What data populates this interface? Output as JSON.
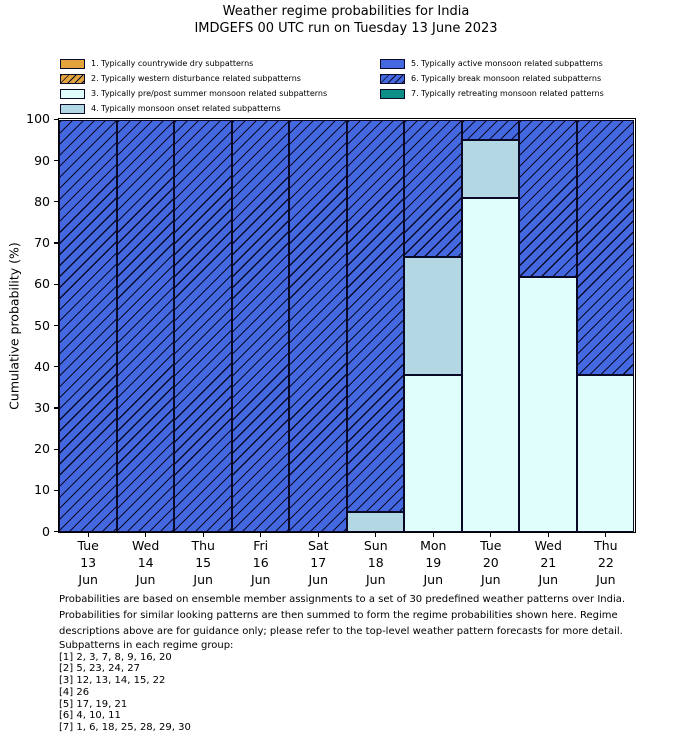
{
  "title": {
    "line1": "Weather regime probabilities for India",
    "line2": "IMDGEFS 00 UTC run on Tuesday 13 June 2023"
  },
  "ylabel": "Cumulative probability (%)",
  "colors": {
    "gold": "#E3A33C",
    "light_cyan": "#E0FEFB",
    "light_blue": "#B3D8E3",
    "royal_blue": "#4468E0",
    "teal": "#0D8F85",
    "edge": "#0a0a28"
  },
  "regimes": [
    {
      "id": 1,
      "label": "1. Typically countrywide dry subpatterns",
      "color": "#E3A33C",
      "hatch": false
    },
    {
      "id": 2,
      "label": "2. Typically western disturbance related subpatterns",
      "color": "#E3A33C",
      "hatch": true
    },
    {
      "id": 3,
      "label": "3. Typically pre/post summer monsoon related subpatterns",
      "color": "#E0FEFB",
      "hatch": false
    },
    {
      "id": 4,
      "label": "4. Typically monsoon onset related subpatterns",
      "color": "#B3D8E3",
      "hatch": false
    },
    {
      "id": 5,
      "label": "5. Typically active monsoon related subpatterns",
      "color": "#4468E0",
      "hatch": false
    },
    {
      "id": 6,
      "label": "6. Typically break monsoon related subpatterns",
      "color": "#4468E0",
      "hatch": true
    },
    {
      "id": 7,
      "label": "7. Typically retreating monsoon related patterns",
      "color": "#0D8F85",
      "hatch": false
    }
  ],
  "chart_data": {
    "type": "stacked_bar",
    "title": "Weather regime probabilities for India — IMDGEFS 00 UTC run on Tuesday 13 June 2023",
    "xlabel": "",
    "ylabel": "Cumulative probability (%)",
    "ylim": [
      0,
      100
    ],
    "yticks": [
      0,
      10,
      20,
      30,
      40,
      50,
      60,
      70,
      80,
      90,
      100
    ],
    "grid": false,
    "legend_position": "top",
    "categories": [
      {
        "dow": "Tue",
        "day": "13",
        "mon": "Jun"
      },
      {
        "dow": "Wed",
        "day": "14",
        "mon": "Jun"
      },
      {
        "dow": "Thu",
        "day": "15",
        "mon": "Jun"
      },
      {
        "dow": "Fri",
        "day": "16",
        "mon": "Jun"
      },
      {
        "dow": "Sat",
        "day": "17",
        "mon": "Jun"
      },
      {
        "dow": "Sun",
        "day": "18",
        "mon": "Jun"
      },
      {
        "dow": "Mon",
        "day": "19",
        "mon": "Jun"
      },
      {
        "dow": "Tue",
        "day": "20",
        "mon": "Jun"
      },
      {
        "dow": "Wed",
        "day": "21",
        "mon": "Jun"
      },
      {
        "dow": "Thu",
        "day": "22",
        "mon": "Jun"
      }
    ],
    "series": [
      {
        "regime": 1,
        "name": "1. Typically countrywide dry subpatterns",
        "values": [
          0,
          0,
          0,
          0,
          0,
          0,
          0,
          0,
          0,
          0
        ]
      },
      {
        "regime": 2,
        "name": "2. Typically western disturbance related subpatterns",
        "values": [
          0,
          0,
          0,
          0,
          0,
          0,
          0,
          0,
          0,
          0
        ]
      },
      {
        "regime": 3,
        "name": "3. Typically pre/post summer monsoon related subpatterns",
        "values": [
          0,
          0,
          0,
          0,
          0,
          0,
          38.1,
          81.0,
          61.9,
          38.1
        ]
      },
      {
        "regime": 4,
        "name": "4. Typically monsoon onset related subpatterns",
        "values": [
          0,
          0,
          0,
          0,
          0,
          4.8,
          28.6,
          14.2,
          0,
          0
        ]
      },
      {
        "regime": 5,
        "name": "5. Typically active monsoon related subpatterns",
        "values": [
          0,
          0,
          0,
          0,
          0,
          0,
          0,
          0,
          0,
          0
        ]
      },
      {
        "regime": 6,
        "name": "6. Typically break monsoon related subpatterns",
        "values": [
          100,
          100,
          100,
          100,
          100,
          95.2,
          33.3,
          4.8,
          38.1,
          61.9
        ]
      },
      {
        "regime": 7,
        "name": "7. Typically retreating monsoon related patterns",
        "values": [
          0,
          0,
          0,
          0,
          0,
          0,
          0,
          0,
          0,
          0
        ]
      }
    ]
  },
  "footer": {
    "lines": [
      "Probabilities are based on ensemble member assignments to a set of 30 predefined weather patterns over India.",
      "Probabilities for similar looking patterns are then summed to form the regime probabilities shown here. Regime",
      "descriptions above are for guidance only; please refer to the top-level weather pattern forecasts for more detail."
    ]
  },
  "subpatterns": {
    "heading": "Subpatterns in each regime group:",
    "lines": [
      "[1] 2, 3, 7, 8, 9, 16, 20",
      "[2] 5, 23, 24, 27",
      "[3] 12, 13, 14, 15, 22",
      "[4] 26",
      "[5] 17, 19, 21",
      "[6] 4, 10, 11",
      "[7] 1, 6, 18, 25, 28, 29, 30"
    ]
  }
}
